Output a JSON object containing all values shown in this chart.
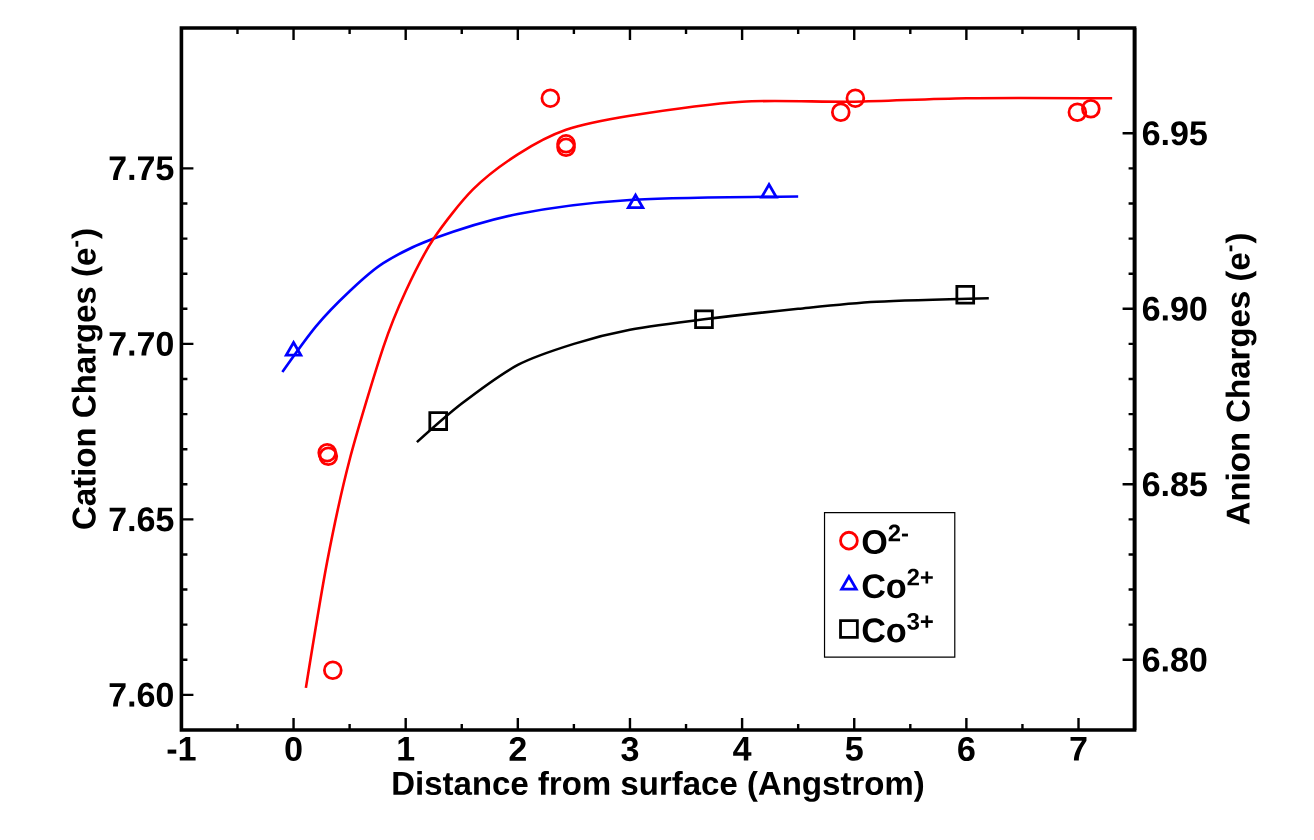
{
  "chart_data": {
    "type": "scatter",
    "xlabel": "Distance from surface (Angstrom)",
    "ylabel": "Cation Charges (e$^{-}$)",
    "y2label": "Anion Charges (e$^{-}$)",
    "xlim": [
      -1,
      7.5
    ],
    "xticks": [
      -1,
      0,
      1,
      2,
      3,
      4,
      5,
      6,
      7
    ],
    "ylim": [
      7.59,
      7.79
    ],
    "yticks": [
      {
        "value": 7.6,
        "label": "7.60"
      },
      {
        "value": 7.65,
        "label": "7.65"
      },
      {
        "value": 7.7,
        "label": "7.70"
      },
      {
        "value": 7.75,
        "label": "7.75"
      }
    ],
    "y2lim": [
      6.78,
      6.98
    ],
    "y2ticks": [
      {
        "value": 6.8,
        "label": "6.80"
      },
      {
        "value": 6.85,
        "label": "6.85"
      },
      {
        "value": 6.9,
        "label": "6.90"
      },
      {
        "value": 6.95,
        "label": "6.95"
      }
    ],
    "legend": "bottom right",
    "series": [
      {
        "name": "O$^{2-}$",
        "color": "#ff0000",
        "marker": "circle",
        "axis": "y2",
        "x": [
          0.3,
          0.31,
          0.35,
          2.29,
          2.43,
          2.43,
          4.88,
          5.01,
          6.99,
          7.11
        ],
        "values": [
          6.859,
          6.858,
          6.797,
          6.96,
          6.947,
          6.946,
          6.956,
          6.96,
          6.956,
          6.957
        ]
      },
      {
        "name": "Co$^{2+}$",
        "color": "#0000ff",
        "marker": "triangle",
        "x": [
          0,
          3.05,
          4.24
        ],
        "values": [
          7.698,
          7.74,
          7.743
        ]
      },
      {
        "name": "Co$^{3+}$",
        "color": "#000000",
        "marker": "square",
        "x": [
          1.29,
          3.66,
          5.99
        ],
        "values": [
          7.678,
          7.707,
          7.714
        ]
      },
      {
        "type": "line",
        "color": "#ff0000",
        "marker": "none",
        "axis": "y2",
        "x": [
          0.11,
          0.3,
          0.5,
          0.8,
          1.0,
          1.25,
          1.6,
          2.0,
          2.43,
          3.0,
          4.0,
          5.0,
          6.0,
          7.3
        ],
        "values": [
          6.792,
          6.828,
          6.857,
          6.889,
          6.905,
          6.92,
          6.934,
          6.944,
          6.951,
          6.955,
          6.959,
          6.959,
          6.96,
          6.96
        ]
      },
      {
        "type": "line",
        "color": "#0000ff",
        "marker": "none",
        "x": [
          -0.1,
          0.2,
          0.5,
          0.8,
          1.25,
          2.0,
          3.0,
          4.5
        ],
        "values": [
          7.692,
          7.705,
          7.715,
          7.723,
          7.73,
          7.737,
          7.741,
          7.742
        ]
      },
      {
        "type": "line",
        "color": "#000000",
        "marker": "none",
        "x": [
          1.1,
          1.5,
          2.0,
          2.5,
          3.0,
          3.66,
          4.5,
          5.2,
          6.2
        ],
        "values": [
          7.672,
          7.683,
          7.694,
          7.7,
          7.704,
          7.707,
          7.71,
          7.712,
          7.713
        ]
      }
    ]
  }
}
